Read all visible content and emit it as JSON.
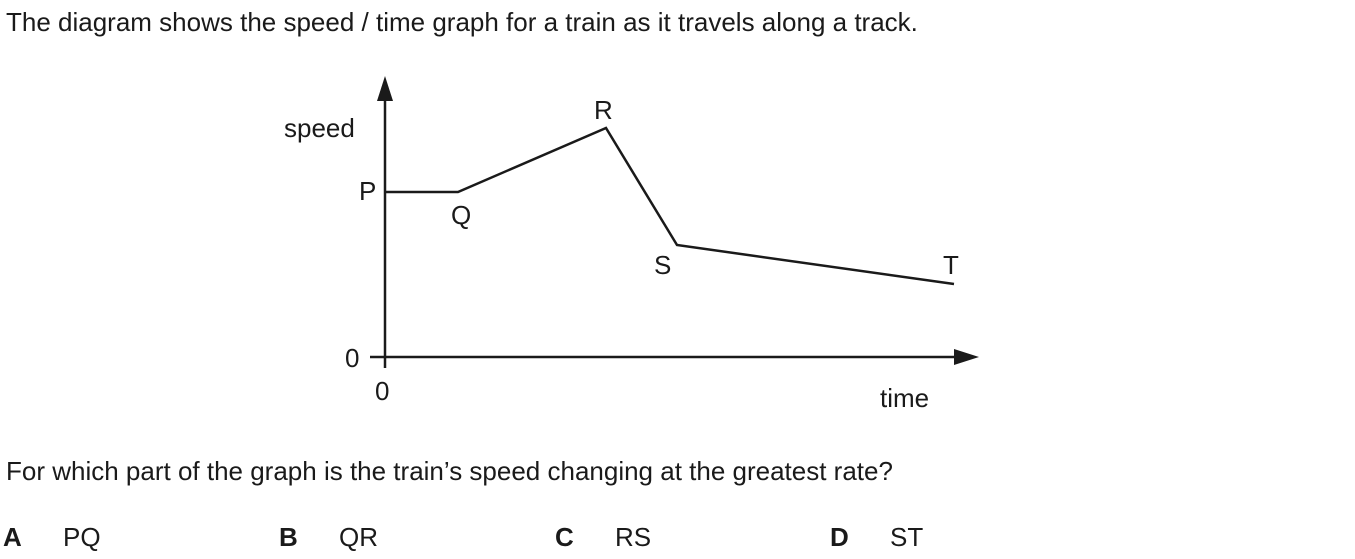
{
  "intro_text": "The diagram shows the speed / time graph for a train as it travels along a track.",
  "question_text": "For which part of the graph is the train’s speed changing at the greatest rate?",
  "diagram": {
    "y_axis_label": "speed",
    "x_axis_label": "time",
    "y_origin_label": "0",
    "x_origin_label": "0",
    "points": [
      {
        "label": "P"
      },
      {
        "label": "Q"
      },
      {
        "label": "R"
      },
      {
        "label": "S"
      },
      {
        "label": "T"
      }
    ]
  },
  "options": [
    {
      "letter": "A",
      "text": "PQ"
    },
    {
      "letter": "B",
      "text": "QR"
    },
    {
      "letter": "C",
      "text": "RS"
    },
    {
      "letter": "D",
      "text": "ST"
    }
  ]
}
